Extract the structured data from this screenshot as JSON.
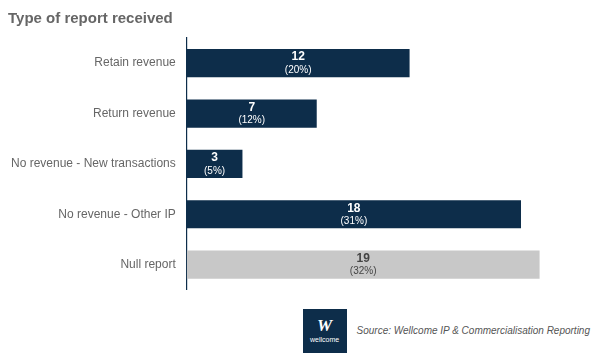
{
  "chart_data": {
    "type": "bar",
    "orientation": "horizontal",
    "title": "Type of report received",
    "categories": [
      "Retain revenue",
      "Return revenue",
      "No revenue - New transactions",
      "No revenue - Other IP",
      "Null report"
    ],
    "values": [
      12,
      7,
      3,
      18,
      19
    ],
    "percentages": [
      "(20%)",
      "(12%)",
      "(5%)",
      "(31%)",
      "(32%)"
    ],
    "colors": [
      "#0d2d4a",
      "#0d2d4a",
      "#0d2d4a",
      "#0d2d4a",
      "#c8c8c8"
    ],
    "data_labels": true,
    "xlim": [
      0,
      21.5
    ],
    "grid": false,
    "tick_labels": "y",
    "annotations": [
      "Source: Wellcome IP & Commercialisation Reporting",
      "W",
      "wellcome"
    ]
  }
}
